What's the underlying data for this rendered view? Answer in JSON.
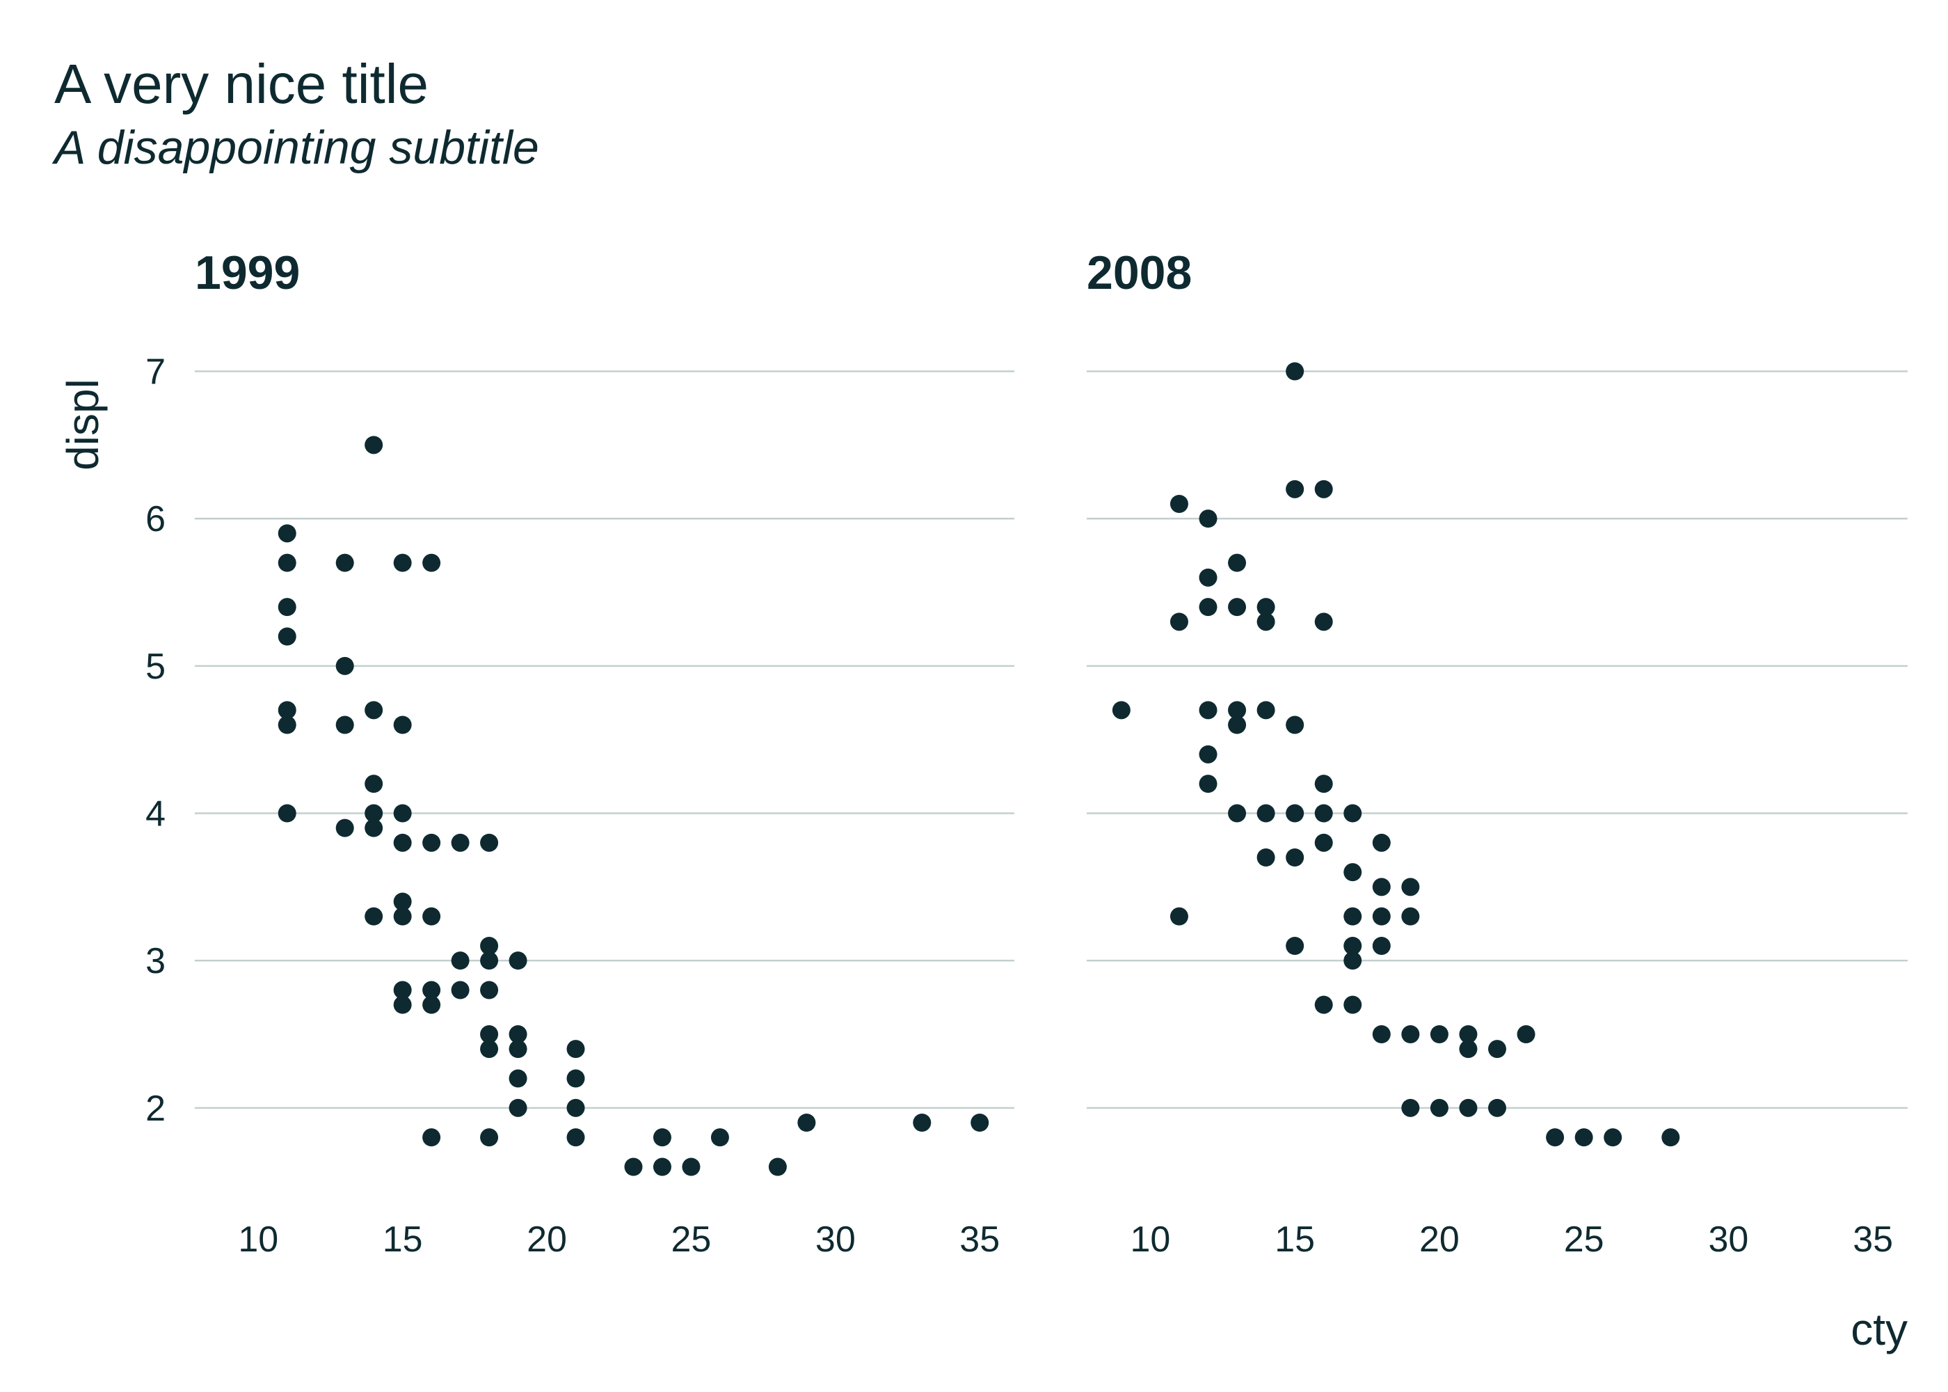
{
  "chart_data": {
    "type": "scatter",
    "title": "A very nice title",
    "subtitle": "A disappointing subtitle",
    "xlabel": "cty",
    "ylabel": "displ",
    "xlim": [
      7.8,
      36.2
    ],
    "ylim": [
      1.3,
      7.3
    ],
    "x_ticks": [
      10,
      15,
      20,
      25,
      30,
      35
    ],
    "y_ticks": [
      2,
      3,
      4,
      5,
      6,
      7
    ],
    "grid": "horizontal-major",
    "point_color": "#0e2a30",
    "grid_color": "#c3cfcf",
    "facets": [
      {
        "label": "1999",
        "points": [
          [
            11,
            5.9
          ],
          [
            11,
            5.7
          ],
          [
            11,
            5.4
          ],
          [
            11,
            5.2
          ],
          [
            11,
            4.7
          ],
          [
            11,
            4.6
          ],
          [
            11,
            4.0
          ],
          [
            13,
            5.7
          ],
          [
            13,
            5.0
          ],
          [
            13,
            4.6
          ],
          [
            13,
            3.9
          ],
          [
            14,
            6.5
          ],
          [
            14,
            4.7
          ],
          [
            14,
            4.2
          ],
          [
            14,
            4.0
          ],
          [
            14,
            3.9
          ],
          [
            14,
            3.3
          ],
          [
            15,
            5.7
          ],
          [
            15,
            4.6
          ],
          [
            15,
            4.0
          ],
          [
            15,
            3.8
          ],
          [
            15,
            3.4
          ],
          [
            15,
            3.3
          ],
          [
            15,
            2.8
          ],
          [
            15,
            2.7
          ],
          [
            16,
            5.7
          ],
          [
            16,
            3.8
          ],
          [
            16,
            3.3
          ],
          [
            16,
            2.8
          ],
          [
            16,
            2.7
          ],
          [
            16,
            1.8
          ],
          [
            17,
            3.8
          ],
          [
            17,
            3.0
          ],
          [
            17,
            2.8
          ],
          [
            18,
            3.8
          ],
          [
            18,
            3.1
          ],
          [
            18,
            3.0
          ],
          [
            18,
            2.8
          ],
          [
            18,
            2.5
          ],
          [
            18,
            2.4
          ],
          [
            18,
            1.8
          ],
          [
            19,
            3.0
          ],
          [
            19,
            2.5
          ],
          [
            19,
            2.4
          ],
          [
            19,
            2.2
          ],
          [
            19,
            2.0
          ],
          [
            21,
            2.4
          ],
          [
            21,
            2.2
          ],
          [
            21,
            2.0
          ],
          [
            21,
            1.8
          ],
          [
            23,
            1.6
          ],
          [
            24,
            1.8
          ],
          [
            24,
            1.6
          ],
          [
            25,
            1.6
          ],
          [
            26,
            1.8
          ],
          [
            28,
            1.6
          ],
          [
            29,
            1.9
          ],
          [
            33,
            1.9
          ],
          [
            35,
            1.9
          ]
        ]
      },
      {
        "label": "2008",
        "points": [
          [
            9,
            4.7
          ],
          [
            11,
            6.1
          ],
          [
            11,
            5.3
          ],
          [
            11,
            3.3
          ],
          [
            12,
            6.0
          ],
          [
            12,
            5.6
          ],
          [
            12,
            5.4
          ],
          [
            12,
            4.7
          ],
          [
            12,
            4.4
          ],
          [
            12,
            4.2
          ],
          [
            13,
            5.7
          ],
          [
            13,
            5.4
          ],
          [
            13,
            4.7
          ],
          [
            13,
            4.6
          ],
          [
            13,
            4.0
          ],
          [
            14,
            5.4
          ],
          [
            14,
            5.3
          ],
          [
            14,
            4.7
          ],
          [
            14,
            4.0
          ],
          [
            14,
            3.7
          ],
          [
            15,
            7.0
          ],
          [
            15,
            6.2
          ],
          [
            15,
            4.6
          ],
          [
            15,
            4.0
          ],
          [
            15,
            3.7
          ],
          [
            15,
            3.1
          ],
          [
            16,
            6.2
          ],
          [
            16,
            5.3
          ],
          [
            16,
            4.2
          ],
          [
            16,
            4.0
          ],
          [
            16,
            3.8
          ],
          [
            16,
            2.7
          ],
          [
            17,
            4.0
          ],
          [
            17,
            3.6
          ],
          [
            17,
            3.3
          ],
          [
            17,
            3.1
          ],
          [
            17,
            3.0
          ],
          [
            17,
            2.7
          ],
          [
            18,
            3.8
          ],
          [
            18,
            3.5
          ],
          [
            18,
            3.3
          ],
          [
            18,
            3.1
          ],
          [
            18,
            2.5
          ],
          [
            19,
            3.5
          ],
          [
            19,
            3.3
          ],
          [
            19,
            2.5
          ],
          [
            19,
            2.0
          ],
          [
            20,
            2.5
          ],
          [
            20,
            2.0
          ],
          [
            21,
            2.5
          ],
          [
            21,
            2.4
          ],
          [
            21,
            2.0
          ],
          [
            22,
            2.4
          ],
          [
            22,
            2.0
          ],
          [
            23,
            2.5
          ],
          [
            24,
            1.8
          ],
          [
            25,
            1.8
          ],
          [
            26,
            1.8
          ],
          [
            28,
            1.8
          ]
        ]
      }
    ]
  }
}
